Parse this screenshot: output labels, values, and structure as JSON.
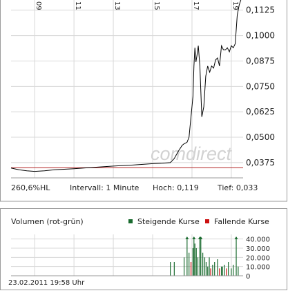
{
  "price_chart": {
    "type": "line",
    "x_ticks": [
      "09",
      "11",
      "13",
      "15",
      "17",
      "19"
    ],
    "y_ticks": [
      "0,1125",
      "0,1000",
      "0,0875",
      "0,0750",
      "0,0625",
      "0,0500",
      "0,0375"
    ],
    "ylim": [
      0.03,
      0.1175
    ],
    "xlim": [
      7.8,
      19.6
    ],
    "reference_line": 0.035,
    "series": [
      {
        "x": [
          7.8,
          8.2,
          8.6,
          9.0,
          9.5,
          10.0,
          11.0,
          12.0,
          13.0,
          14.0,
          15.0,
          15.5,
          15.9,
          16.1,
          16.3,
          16.5,
          16.6,
          16.75,
          16.85,
          16.95,
          17.05,
          17.1,
          17.15,
          17.2,
          17.25,
          17.32,
          17.4,
          17.5,
          17.6,
          17.7,
          17.8,
          17.9,
          18.0,
          18.1,
          18.2,
          18.3,
          18.4,
          18.5,
          18.6,
          18.7,
          18.8,
          18.9,
          19.0,
          19.1,
          19.2,
          19.3,
          19.4,
          19.5
        ],
        "y": [
          0.0348,
          0.034,
          0.0335,
          0.0332,
          0.0335,
          0.034,
          0.0345,
          0.0352,
          0.0358,
          0.0363,
          0.037,
          0.0372,
          0.0375,
          0.0395,
          0.043,
          0.046,
          0.0468,
          0.0475,
          0.05,
          0.06,
          0.07,
          0.085,
          0.094,
          0.087,
          0.09,
          0.095,
          0.085,
          0.06,
          0.065,
          0.08,
          0.085,
          0.082,
          0.085,
          0.084,
          0.088,
          0.089,
          0.085,
          0.095,
          0.093,
          0.093,
          0.094,
          0.092,
          0.095,
          0.094,
          0.096,
          0.11,
          0.115,
          0.118
        ]
      }
    ]
  },
  "stats": {
    "hl": "260,6%HL",
    "interval": "Intervall: 1 Minute",
    "high": "Hoch:  0,119",
    "low": "Tief:  0,033"
  },
  "watermark": "comdirect",
  "volume_chart": {
    "type": "bar",
    "title": "Volumen (rot-grün)",
    "legend": [
      {
        "label": "Steigende Kurse",
        "color": "#1a6b2f"
      },
      {
        "label": "Fallende Kurse",
        "color": "#cc1111"
      }
    ],
    "y_ticks": [
      "40.000",
      "30.000",
      "20.000",
      "10.000",
      "0"
    ],
    "ylim": [
      0,
      45000
    ],
    "x": [
      15.9,
      16.1,
      16.6,
      16.75,
      16.85,
      16.95,
      17.05,
      17.1,
      17.15,
      17.22,
      17.3,
      17.4,
      17.45,
      17.55,
      17.65,
      17.72,
      17.8,
      17.88,
      17.95,
      18.05,
      18.15,
      18.3,
      18.4,
      18.5,
      18.55,
      18.65,
      18.75,
      18.85,
      19.0,
      19.1,
      19.25,
      19.35
    ],
    "values": [
      15000,
      15000,
      20000,
      42000,
      25000,
      15000,
      30000,
      42000,
      35000,
      30000,
      20000,
      42000,
      42000,
      25000,
      20000,
      15000,
      10000,
      20000,
      8000,
      12000,
      15000,
      18000,
      8000,
      10000,
      10000,
      12000,
      8000,
      15000,
      8000,
      12000,
      42000,
      10000
    ],
    "colors": [
      "g",
      "g",
      "g",
      "g",
      "g",
      "r",
      "g",
      "g",
      "g",
      "g",
      "g",
      "g",
      "g",
      "g",
      "g",
      "g",
      "g",
      "g",
      "r",
      "g",
      "g",
      "g",
      "r",
      "g",
      "g",
      "g",
      "r",
      "g",
      "g",
      "g",
      "g",
      "g"
    ],
    "timestamp": "23.02.2011 19:58 Uhr"
  },
  "colors": {
    "price_line": "#000000",
    "reference_line": "#b22222",
    "grid": "#d8d8d8",
    "frame": "#9a9a9a",
    "up": "#1a6b2f",
    "down": "#cc1111",
    "watermark": "#d0d0d0"
  }
}
